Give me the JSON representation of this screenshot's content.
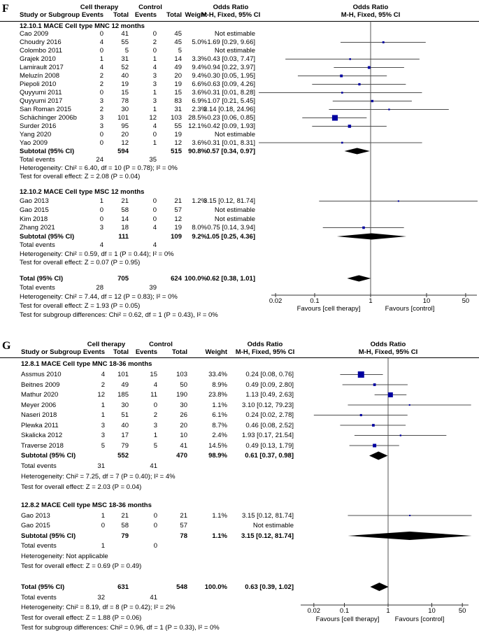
{
  "colors": {
    "marker_blue": "#0000a0",
    "diamond_black": "#000000",
    "ci_line": "#4d4d4d",
    "axis": "#333333"
  },
  "chart_data": [
    {
      "type": "forest",
      "panel_label": "F",
      "effect_measure": "Odds Ratio",
      "column_groups": {
        "cell_therapy": "Cell therapy",
        "control": "Control",
        "odds_ratio": "Odds Ratio"
      },
      "columns": {
        "study": "Study or Subgroup",
        "events": "Events",
        "total": "Total",
        "weight": "Weight",
        "method": "M-H, Fixed, 95% CI"
      },
      "sections": [
        {
          "title": "12.10.1 MACE Cell type MNC 12 months",
          "studies": [
            {
              "name": "Cao 2009",
              "e1": "0",
              "t1": "41",
              "e2": "0",
              "t2": "45",
              "weight": "",
              "or_text": "Not estimable",
              "or": null,
              "lo": null,
              "hi": null
            },
            {
              "name": "Choudry 2016",
              "e1": "4",
              "t1": "55",
              "e2": "2",
              "t2": "45",
              "weight": "5.0%",
              "or_text": "1.69 [0.29, 9.66]",
              "or": 1.69,
              "lo": 0.29,
              "hi": 9.66
            },
            {
              "name": "Colombo 2011",
              "e1": "0",
              "t1": "5",
              "e2": "0",
              "t2": "5",
              "weight": "",
              "or_text": "Not estimable",
              "or": null,
              "lo": null,
              "hi": null
            },
            {
              "name": "Grajek 2010",
              "e1": "1",
              "t1": "31",
              "e2": "1",
              "t2": "14",
              "weight": "3.3%",
              "or_text": "0.43 [0.03, 7.47]",
              "or": 0.43,
              "lo": 0.03,
              "hi": 7.47
            },
            {
              "name": "Lamirault 2017",
              "e1": "4",
              "t1": "52",
              "e2": "4",
              "t2": "49",
              "weight": "9.4%",
              "or_text": "0.94 [0.22, 3.97]",
              "or": 0.94,
              "lo": 0.22,
              "hi": 3.97
            },
            {
              "name": "Meluzín 2008",
              "e1": "2",
              "t1": "40",
              "e2": "3",
              "t2": "20",
              "weight": "9.4%",
              "or_text": "0.30 [0.05, 1.95]",
              "or": 0.3,
              "lo": 0.05,
              "hi": 1.95
            },
            {
              "name": "Piepoli 2010",
              "e1": "2",
              "t1": "19",
              "e2": "3",
              "t2": "19",
              "weight": "6.6%",
              "or_text": "0.63 [0.09, 4.26]",
              "or": 0.63,
              "lo": 0.09,
              "hi": 4.26
            },
            {
              "name": "Quyyumi 2011",
              "e1": "0",
              "t1": "15",
              "e2": "1",
              "t2": "15",
              "weight": "3.6%",
              "or_text": "0.31 [0.01, 8.28]",
              "or": 0.31,
              "lo": 0.01,
              "hi": 8.28
            },
            {
              "name": "Quyyumi 2017",
              "e1": "3",
              "t1": "78",
              "e2": "3",
              "t2": "83",
              "weight": "6.9%",
              "or_text": "1.07 [0.21, 5.45]",
              "or": 1.07,
              "lo": 0.21,
              "hi": 5.45
            },
            {
              "name": "San Roman 2015",
              "e1": "2",
              "t1": "30",
              "e2": "1",
              "t2": "31",
              "weight": "2.3%",
              "or_text": "2.14 [0.18, 24.96]",
              "or": 2.14,
              "lo": 0.18,
              "hi": 24.96
            },
            {
              "name": "Schächinger 2006b",
              "e1": "3",
              "t1": "101",
              "e2": "12",
              "t2": "103",
              "weight": "28.5%",
              "or_text": "0.23 [0.06, 0.85]",
              "or": 0.23,
              "lo": 0.06,
              "hi": 0.85
            },
            {
              "name": "Surder 2016",
              "e1": "3",
              "t1": "95",
              "e2": "4",
              "t2": "55",
              "weight": "12.1%",
              "or_text": "0.42 [0.09, 1.93]",
              "or": 0.42,
              "lo": 0.09,
              "hi": 1.93
            },
            {
              "name": "Yang 2020",
              "e1": "0",
              "t1": "20",
              "e2": "0",
              "t2": "19",
              "weight": "",
              "or_text": "Not estimable",
              "or": null,
              "lo": null,
              "hi": null
            },
            {
              "name": "Yao 2009",
              "e1": "0",
              "t1": "12",
              "e2": "1",
              "t2": "12",
              "weight": "3.6%",
              "or_text": "0.31 [0.01, 8.31]",
              "or": 0.31,
              "lo": 0.01,
              "hi": 8.31
            }
          ],
          "subtotal": {
            "label": "Subtotal (95% CI)",
            "t1": "594",
            "t2": "515",
            "weight": "90.8%",
            "or_text": "0.57 [0.34, 0.97]",
            "or": 0.57,
            "lo": 0.34,
            "hi": 0.97
          },
          "total_events": {
            "label": "Total events",
            "e1": "24",
            "e2": "35"
          },
          "heterogeneity": "Heterogeneity: Chi² = 6.40, df = 10 (P = 0.78); I² = 0%",
          "overall_test": "Test for overall effect: Z = 2.08 (P = 0.04)"
        },
        {
          "title": "12.10.2 MACE Cell type MSC 12 months",
          "studies": [
            {
              "name": "Gao 2013",
              "e1": "1",
              "t1": "21",
              "e2": "0",
              "t2": "21",
              "weight": "1.2%",
              "or_text": "3.15 [0.12, 81.74]",
              "or": 3.15,
              "lo": 0.12,
              "hi": 81.74
            },
            {
              "name": "Gao 2015",
              "e1": "0",
              "t1": "58",
              "e2": "0",
              "t2": "57",
              "weight": "",
              "or_text": "Not estimable",
              "or": null,
              "lo": null,
              "hi": null
            },
            {
              "name": "Kim 2018",
              "e1": "0",
              "t1": "14",
              "e2": "0",
              "t2": "12",
              "weight": "",
              "or_text": "Not estimable",
              "or": null,
              "lo": null,
              "hi": null
            },
            {
              "name": "Zhang 2021",
              "e1": "3",
              "t1": "18",
              "e2": "4",
              "t2": "19",
              "weight": "8.0%",
              "or_text": "0.75 [0.14, 3.94]",
              "or": 0.75,
              "lo": 0.14,
              "hi": 3.94
            }
          ],
          "subtotal": {
            "label": "Subtotal (95% CI)",
            "t1": "111",
            "t2": "109",
            "weight": "9.2%",
            "or_text": "1.05 [0.25, 4.36]",
            "or": 1.05,
            "lo": 0.25,
            "hi": 4.36
          },
          "total_events": {
            "label": "Total events",
            "e1": "4",
            "e2": "4"
          },
          "heterogeneity": "Heterogeneity: Chi² = 0.59, df = 1 (P = 0.44); I² = 0%",
          "overall_test": "Test for overall effect: Z = 0.07 (P = 0.95)"
        }
      ],
      "total": {
        "label": "Total (95% CI)",
        "t1": "705",
        "t2": "624",
        "weight": "100.0%",
        "or_text": "0.62 [0.38, 1.01]",
        "or": 0.62,
        "lo": 0.38,
        "hi": 1.01
      },
      "total_events": {
        "label": "Total events",
        "e1": "28",
        "e2": "39"
      },
      "heterogeneity": "Heterogeneity: Chi² = 7.44, df = 12 (P = 0.83); I² = 0%",
      "overall_test": "Test for overall effect: Z = 1.93 (P = 0.05)",
      "subgroup_diff": "Test for subgroup differences: Chi² = 0.62, df = 1 (P = 0.43), I² = 0%",
      "axis": {
        "scale": "log",
        "ticks": [
          0.02,
          0.1,
          1,
          10,
          50
        ],
        "tick_labels": [
          "0.02",
          "0.1",
          "1",
          "10",
          "50"
        ],
        "favours_left": "Favours [cell therapy]",
        "favours_right": "Favours [control]"
      }
    },
    {
      "type": "forest",
      "panel_label": "G",
      "effect_measure": "Odds Ratio",
      "column_groups": {
        "cell_therapy": "Cell therapy",
        "control": "Control",
        "odds_ratio": "Odds Ratio"
      },
      "columns": {
        "study": "Study or Subgroup",
        "events": "Events",
        "total": "Total",
        "weight": "Weight",
        "method": "M-H, Fixed, 95% CI"
      },
      "sections": [
        {
          "title": "12.8.1 MACE Cell type MNC 18-36 months",
          "studies": [
            {
              "name": "Assmus 2010",
              "e1": "4",
              "t1": "101",
              "e2": "15",
              "t2": "103",
              "weight": "33.4%",
              "or_text": "0.24 [0.08, 0.76]",
              "or": 0.24,
              "lo": 0.08,
              "hi": 0.76
            },
            {
              "name": "Beitnes 2009",
              "e1": "2",
              "t1": "49",
              "e2": "4",
              "t2": "50",
              "weight": "8.9%",
              "or_text": "0.49 [0.09, 2.80]",
              "or": 0.49,
              "lo": 0.09,
              "hi": 2.8
            },
            {
              "name": "Mathur 2020",
              "e1": "12",
              "t1": "185",
              "e2": "11",
              "t2": "190",
              "weight": "23.8%",
              "or_text": "1.13 [0.49, 2.63]",
              "or": 1.13,
              "lo": 0.49,
              "hi": 2.63
            },
            {
              "name": "Meyer 2006",
              "e1": "1",
              "t1": "30",
              "e2": "0",
              "t2": "30",
              "weight": "1.1%",
              "or_text": "3.10 [0.12, 79.23]",
              "or": 3.1,
              "lo": 0.12,
              "hi": 79.23
            },
            {
              "name": "Naseri 2018",
              "e1": "1",
              "t1": "51",
              "e2": "2",
              "t2": "26",
              "weight": "6.1%",
              "or_text": "0.24 [0.02, 2.78]",
              "or": 0.24,
              "lo": 0.02,
              "hi": 2.78
            },
            {
              "name": "Plewka 2011",
              "e1": "3",
              "t1": "40",
              "e2": "3",
              "t2": "20",
              "weight": "8.7%",
              "or_text": "0.46 [0.08, 2.52]",
              "or": 0.46,
              "lo": 0.08,
              "hi": 2.52
            },
            {
              "name": "Skalicka 2012",
              "e1": "3",
              "t1": "17",
              "e2": "1",
              "t2": "10",
              "weight": "2.4%",
              "or_text": "1.93 [0.17, 21.54]",
              "or": 1.93,
              "lo": 0.17,
              "hi": 21.54
            },
            {
              "name": "Traverse 2018",
              "e1": "5",
              "t1": "79",
              "e2": "5",
              "t2": "41",
              "weight": "14.5%",
              "or_text": "0.49 [0.13, 1.79]",
              "or": 0.49,
              "lo": 0.13,
              "hi": 1.79
            }
          ],
          "subtotal": {
            "label": "Subtotal (95% CI)",
            "t1": "552",
            "t2": "470",
            "weight": "98.9%",
            "or_text": "0.61 [0.37, 0.98]",
            "or": 0.61,
            "lo": 0.37,
            "hi": 0.98
          },
          "total_events": {
            "label": "Total events",
            "e1": "31",
            "e2": "41"
          },
          "heterogeneity": "Heterogeneity: Chi² = 7.25, df = 7 (P = 0.40); I² = 4%",
          "overall_test": "Test for overall effect: Z = 2.03 (P = 0.04)"
        },
        {
          "title": "12.8.2 MACE Cell type MSC 18-36 months",
          "studies": [
            {
              "name": "Gao 2013",
              "e1": "1",
              "t1": "21",
              "e2": "0",
              "t2": "21",
              "weight": "1.1%",
              "or_text": "3.15 [0.12, 81.74]",
              "or": 3.15,
              "lo": 0.12,
              "hi": 81.74
            },
            {
              "name": "Gao 2015",
              "e1": "0",
              "t1": "58",
              "e2": "0",
              "t2": "57",
              "weight": "",
              "or_text": "Not estimable",
              "or": null,
              "lo": null,
              "hi": null
            }
          ],
          "subtotal": {
            "label": "Subtotal (95% CI)",
            "t1": "79",
            "t2": "78",
            "weight": "1.1%",
            "or_text": "3.15 [0.12, 81.74]",
            "or": 3.15,
            "lo": 0.12,
            "hi": 81.74
          },
          "total_events": {
            "label": "Total events",
            "e1": "1",
            "e2": "0"
          },
          "heterogeneity": "Heterogeneity: Not applicable",
          "overall_test": "Test for overall effect: Z = 0.69 (P = 0.49)"
        }
      ],
      "total": {
        "label": "Total (95% CI)",
        "t1": "631",
        "t2": "548",
        "weight": "100.0%",
        "or_text": "0.63 [0.39, 1.02]",
        "or": 0.63,
        "lo": 0.39,
        "hi": 1.02
      },
      "total_events": {
        "label": "Total events",
        "e1": "32",
        "e2": "41"
      },
      "heterogeneity": "Heterogeneity: Chi² = 8.19, df = 8 (P = 0.42); I² = 2%",
      "overall_test": "Test for overall effect: Z = 1.88 (P = 0.06)",
      "subgroup_diff": "Test for subgroup differences: Chi² = 0.96, df = 1 (P = 0.33), I² = 0%",
      "axis": {
        "scale": "log",
        "ticks": [
          0.02,
          0.1,
          1,
          10,
          50
        ],
        "tick_labels": [
          "0.02",
          "0.1",
          "1",
          "10",
          "50"
        ],
        "favours_left": "Favours [cell therapy]",
        "favours_right": "Favours [control]"
      }
    }
  ]
}
